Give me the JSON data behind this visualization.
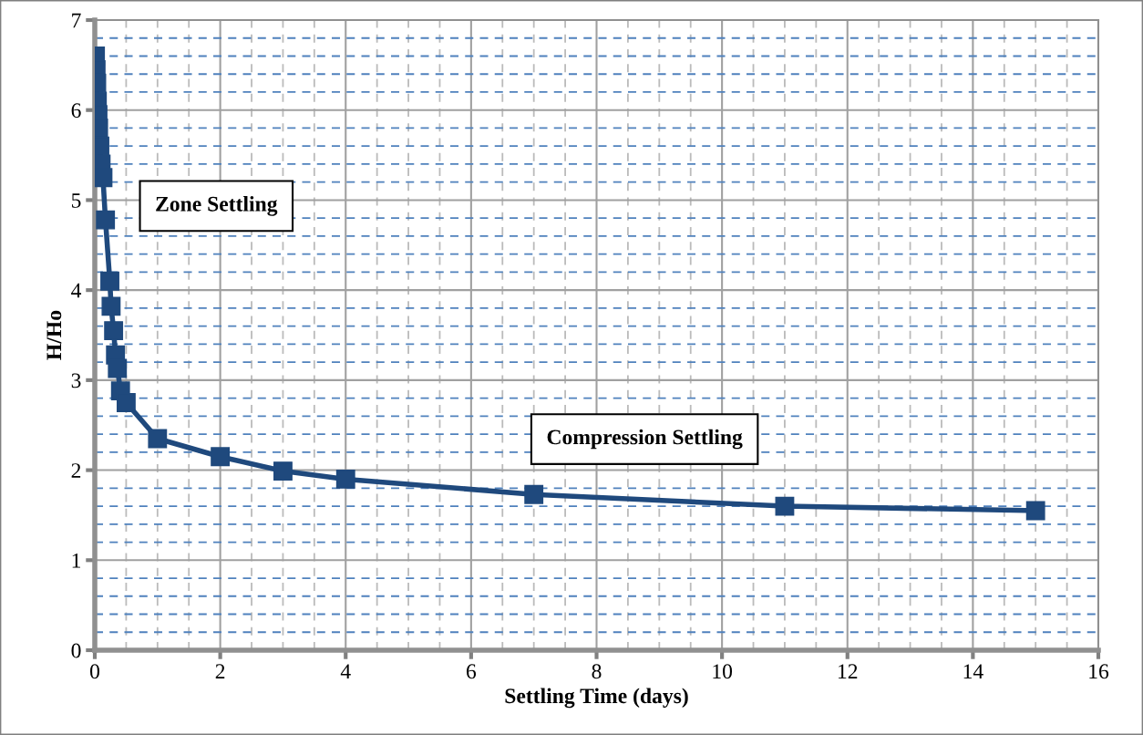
{
  "chart_data": {
    "type": "line",
    "xlabel": "Settling Time (days)",
    "ylabel": "H/Ho",
    "x": [
      0.01,
      0.02,
      0.03,
      0.04,
      0.05,
      0.06,
      0.08,
      0.1,
      0.13,
      0.17,
      0.24,
      0.26,
      0.3,
      0.33,
      0.36,
      0.41,
      0.5,
      1,
      2,
      3,
      4,
      7,
      11,
      15
    ],
    "series": [
      {
        "color": "#1f497d",
        "values": [
          6.6,
          6.45,
          6.3,
          6.1,
          5.95,
          5.8,
          5.6,
          5.4,
          5.25,
          4.78,
          4.1,
          3.82,
          3.55,
          3.28,
          3.13,
          2.88,
          2.75,
          2.35,
          2.15,
          1.99,
          1.9,
          1.73,
          1.6,
          1.55
        ]
      }
    ],
    "xlim": [
      0,
      16
    ],
    "ylim": [
      0,
      7
    ],
    "xticks": [
      0,
      {
        "value": 0.5,
        "label": null
      },
      {
        "value": 1,
        "label": null
      },
      {
        "value": 1.5,
        "label": null
      },
      2,
      {
        "value": 2.5,
        "label": null
      },
      {
        "value": 3,
        "label": null
      },
      {
        "value": 3.5,
        "label": null
      },
      4,
      {
        "value": 4.5,
        "label": null
      },
      {
        "value": 5,
        "label": null
      },
      {
        "value": 5.5,
        "label": null
      },
      6,
      {
        "value": 6.5,
        "label": null
      },
      {
        "value": 7,
        "label": null
      },
      {
        "value": 7.5,
        "label": null
      },
      8,
      {
        "value": 8.5,
        "label": null
      },
      {
        "value": 9,
        "label": null
      },
      {
        "value": 9.5,
        "label": null
      },
      10,
      {
        "value": 10.5,
        "label": null
      },
      {
        "value": 11,
        "label": null
      },
      {
        "value": 11.5,
        "label": null
      },
      12,
      {
        "value": 12.5,
        "label": null
      },
      {
        "value": 13,
        "label": null
      },
      {
        "value": 13.5,
        "label": null
      },
      14,
      {
        "value": 14.5,
        "label": null
      },
      {
        "value": 15,
        "label": null
      },
      {
        "value": 15.5,
        "label": null
      },
      16
    ],
    "yticks": [
      0,
      {
        "value": 0.2,
        "label": null
      },
      {
        "value": 0.4,
        "label": null
      },
      {
        "value": 0.6,
        "label": null
      },
      {
        "value": 0.8,
        "label": null
      },
      1,
      {
        "value": 1.2,
        "label": null
      },
      {
        "value": 1.4,
        "label": null
      },
      {
        "value": 1.6,
        "label": null
      },
      {
        "value": 1.8,
        "label": null
      },
      2,
      {
        "value": 2.2,
        "label": null
      },
      {
        "value": 2.4,
        "label": null
      },
      {
        "value": 2.6,
        "label": null
      },
      {
        "value": 2.8,
        "label": null
      },
      3,
      {
        "value": 3.2,
        "label": null
      },
      {
        "value": 3.4,
        "label": null
      },
      {
        "value": 3.6,
        "label": null
      },
      {
        "value": 3.8,
        "label": null
      },
      4,
      {
        "value": 4.2,
        "label": null
      },
      {
        "value": 4.4,
        "label": null
      },
      {
        "value": 4.6,
        "label": null
      },
      {
        "value": 4.8,
        "label": null
      },
      5,
      {
        "value": 5.2,
        "label": null
      },
      {
        "value": 5.4,
        "label": null
      },
      {
        "value": 5.6,
        "label": null
      },
      {
        "value": 5.8,
        "label": null
      },
      6,
      {
        "value": 6.2,
        "label": null
      },
      {
        "value": 6.4,
        "label": null
      },
      {
        "value": 6.6,
        "label": null
      },
      {
        "value": 6.8,
        "label": null
      },
      7
    ],
    "grid": true,
    "marker": "square",
    "line_style": "solid",
    "annotations": [
      "Zone Settling",
      "Compression Settling"
    ]
  }
}
